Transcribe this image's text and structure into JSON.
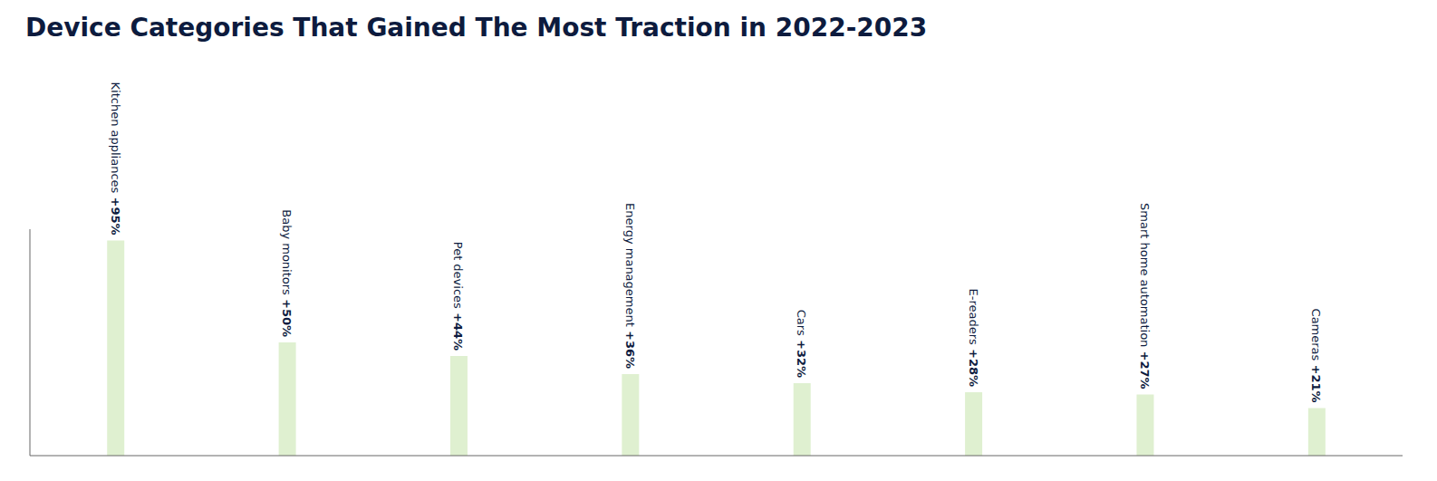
{
  "chart_data": {
    "type": "bar",
    "title": "Device Categories That Gained The Most Traction in 2022-2023",
    "categories": [
      "Kitchen appliances",
      "Baby monitors",
      "Pet devices",
      "Energy management",
      "Cars",
      "E-readers",
      "Smart home automation",
      "Cameras"
    ],
    "values": [
      95,
      50,
      44,
      36,
      32,
      28,
      27,
      21
    ],
    "value_labels": [
      "+95%",
      "+50%",
      "+44%",
      "+36%",
      "+32%",
      "+28%",
      "+27%",
      "+21%"
    ],
    "color": "#dff0d0",
    "ylim": [
      0,
      100
    ],
    "data_labels": true,
    "tick_labels": false,
    "grid": false
  }
}
